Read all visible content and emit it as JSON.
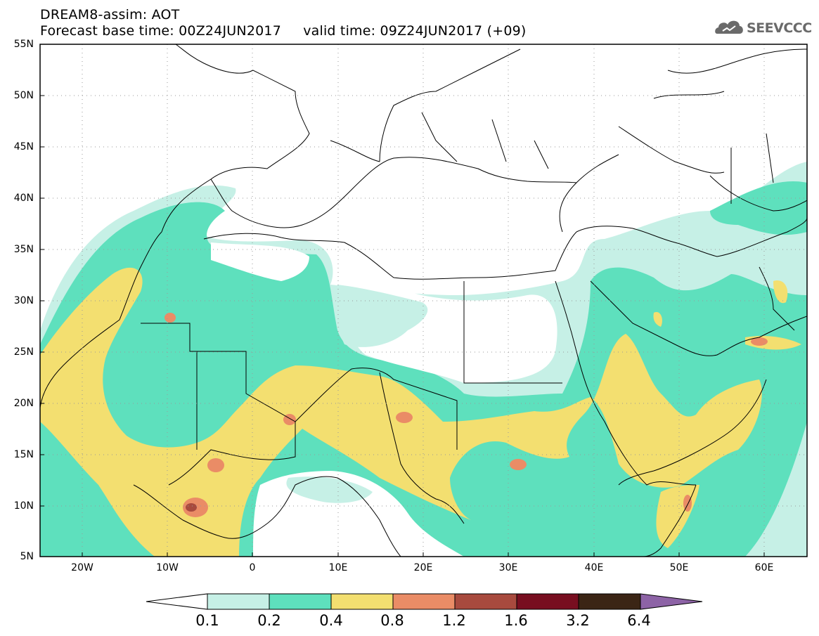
{
  "header": {
    "title": "DREAM8-assim: AOT",
    "base_time": "Forecast base time: 00Z24JUN2017",
    "valid_time": "valid time: 09Z24JUN2017 (+09)",
    "logo_text": "SEEVCCC"
  },
  "axes": {
    "lat_labels": [
      "55N",
      "50N",
      "45N",
      "40N",
      "35N",
      "30N",
      "25N",
      "20N",
      "15N",
      "10N",
      "5N"
    ],
    "lon_labels": [
      "20W",
      "10W",
      "0",
      "10E",
      "20E",
      "30E",
      "40E",
      "50E",
      "60E"
    ]
  },
  "colorbar": {
    "ticks": [
      "0.1",
      "0.2",
      "0.4",
      "0.8",
      "1.2",
      "1.6",
      "3.2",
      "6.4"
    ],
    "colors": [
      "#ffffff",
      "#c6f0e6",
      "#5ee0bd",
      "#f3df70",
      "#ea8c66",
      "#a84a3e",
      "#780e20",
      "#3b2515",
      "#8d63a6"
    ]
  },
  "map": {
    "variable": "Aerosol Optical Thickness",
    "lon_range": [
      -25,
      65
    ],
    "lat_range": [
      5,
      55
    ],
    "grid": "dotted"
  }
}
